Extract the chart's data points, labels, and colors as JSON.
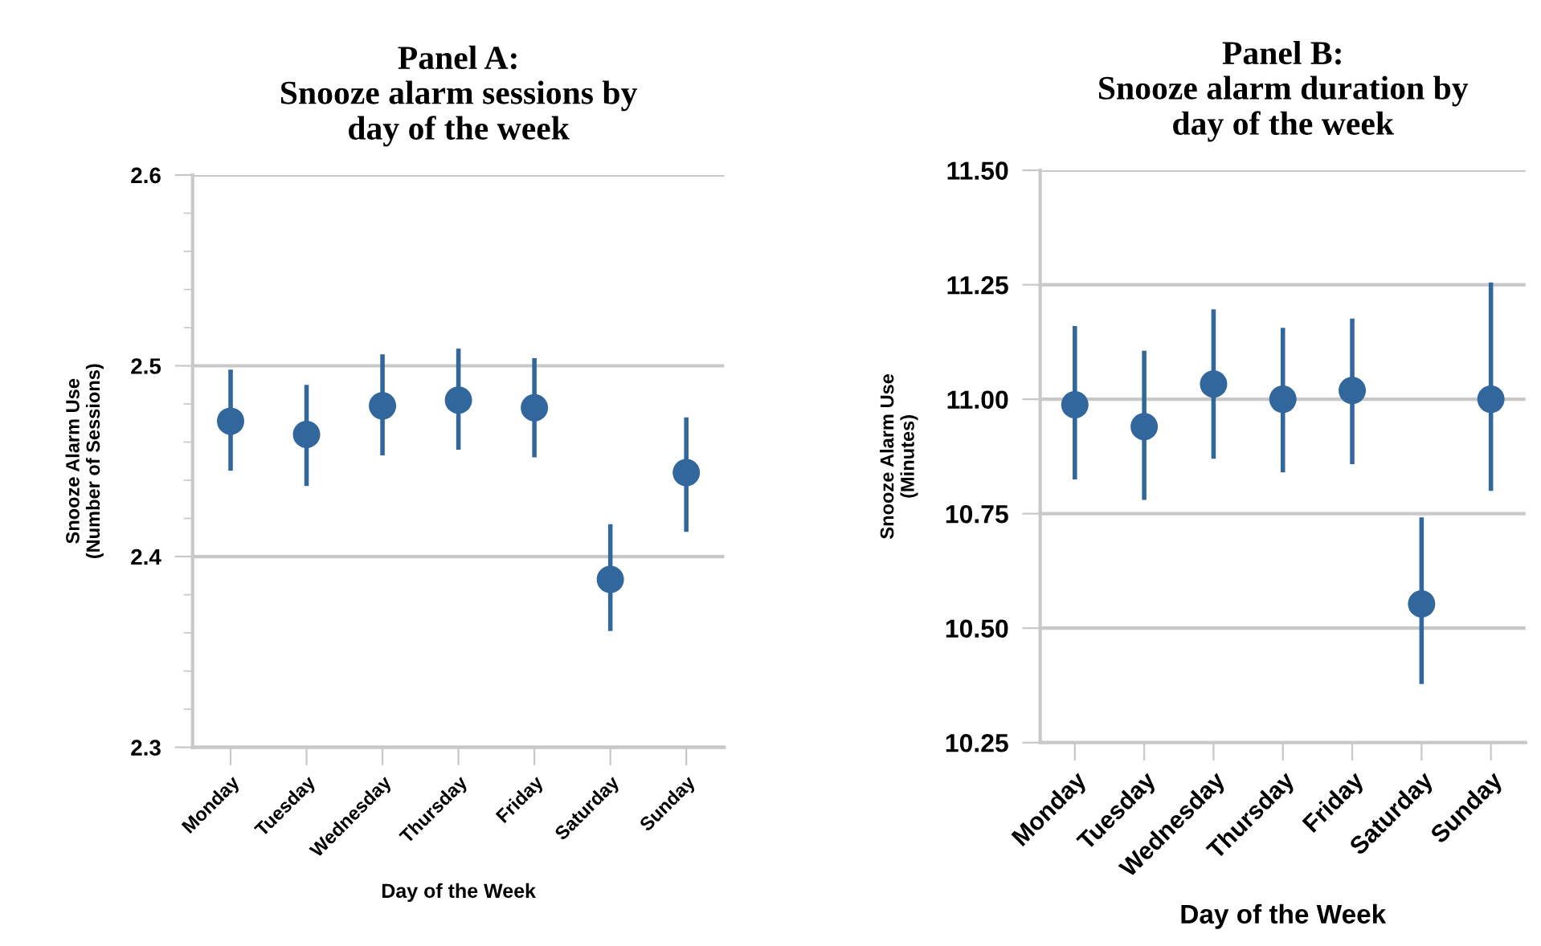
{
  "chart_data": [
    {
      "type": "scatter",
      "title": "Panel A:\nSnooze alarm sessions by\nday of the week",
      "xlabel": "Day of the Week",
      "ylabel": "Snooze Alarm Use\n(Number of Sessions)",
      "categories": [
        "Monday",
        "Tuesday",
        "Wednesday",
        "Thursday",
        "Friday",
        "Saturday",
        "Sunday"
      ],
      "series": [
        {
          "color": "#31679c",
          "values": [
            2.471,
            2.464,
            2.479,
            2.482,
            2.478,
            2.388,
            2.444
          ],
          "errors": [
            [
              2.445,
              2.498
            ],
            [
              2.437,
              2.49
            ],
            [
              2.453,
              2.506
            ],
            [
              2.456,
              2.509
            ],
            [
              2.452,
              2.504
            ],
            [
              2.361,
              2.417
            ],
            [
              2.413,
              2.473
            ]
          ]
        }
      ],
      "ylim": [
        2.3,
        2.6
      ],
      "yticks": [
        2.3,
        {
          "value": 2.32,
          "label": null
        },
        {
          "value": 2.34,
          "label": null
        },
        {
          "value": 2.36,
          "label": null
        },
        {
          "value": 2.38,
          "label": null
        },
        2.4,
        {
          "value": 2.42,
          "label": null
        },
        {
          "value": 2.44,
          "label": null
        },
        {
          "value": 2.46,
          "label": null
        },
        {
          "value": 2.48,
          "label": null
        },
        2.5,
        {
          "value": 2.52,
          "label": null
        },
        {
          "value": 2.54,
          "label": null
        },
        {
          "value": 2.56,
          "label": null
        },
        {
          "value": 2.58,
          "label": null
        },
        2.6
      ],
      "grid": "y",
      "marker": "circle"
    },
    {
      "type": "scatter",
      "title": "Panel B:\nSnooze alarm duration by\nday of the week",
      "xlabel": "Day of the Week",
      "ylabel": "Snooze Alarm Use\n(Minutes)",
      "categories": [
        "Monday",
        "Tuesday",
        "Wednesday",
        "Thursday",
        "Friday",
        "Saturday",
        "Sunday"
      ],
      "series": [
        {
          "color": "#31679c",
          "values": [
            10.988,
            10.94,
            11.033,
            11.0,
            11.019,
            10.553,
            11.0
          ],
          "errors": [
            [
              10.825,
              11.16
            ],
            [
              10.78,
              11.106
            ],
            [
              10.87,
              11.196
            ],
            [
              10.84,
              11.156
            ],
            [
              10.858,
              11.176
            ],
            [
              10.378,
              10.742
            ],
            [
              10.8,
              11.255
            ]
          ]
        }
      ],
      "ylim": [
        10.25,
        11.5
      ],
      "yticks": [
        {
          "value": 10.25,
          "label": "10.25"
        },
        {
          "value": 10.5,
          "label": "10.50"
        },
        {
          "value": 10.75,
          "label": "10.75"
        },
        {
          "value": 11.0,
          "label": "11.00"
        },
        {
          "value": 11.25,
          "label": "11.25"
        },
        {
          "value": 11.5,
          "label": "11.50"
        }
      ],
      "grid": "y",
      "marker": "circle"
    }
  ]
}
